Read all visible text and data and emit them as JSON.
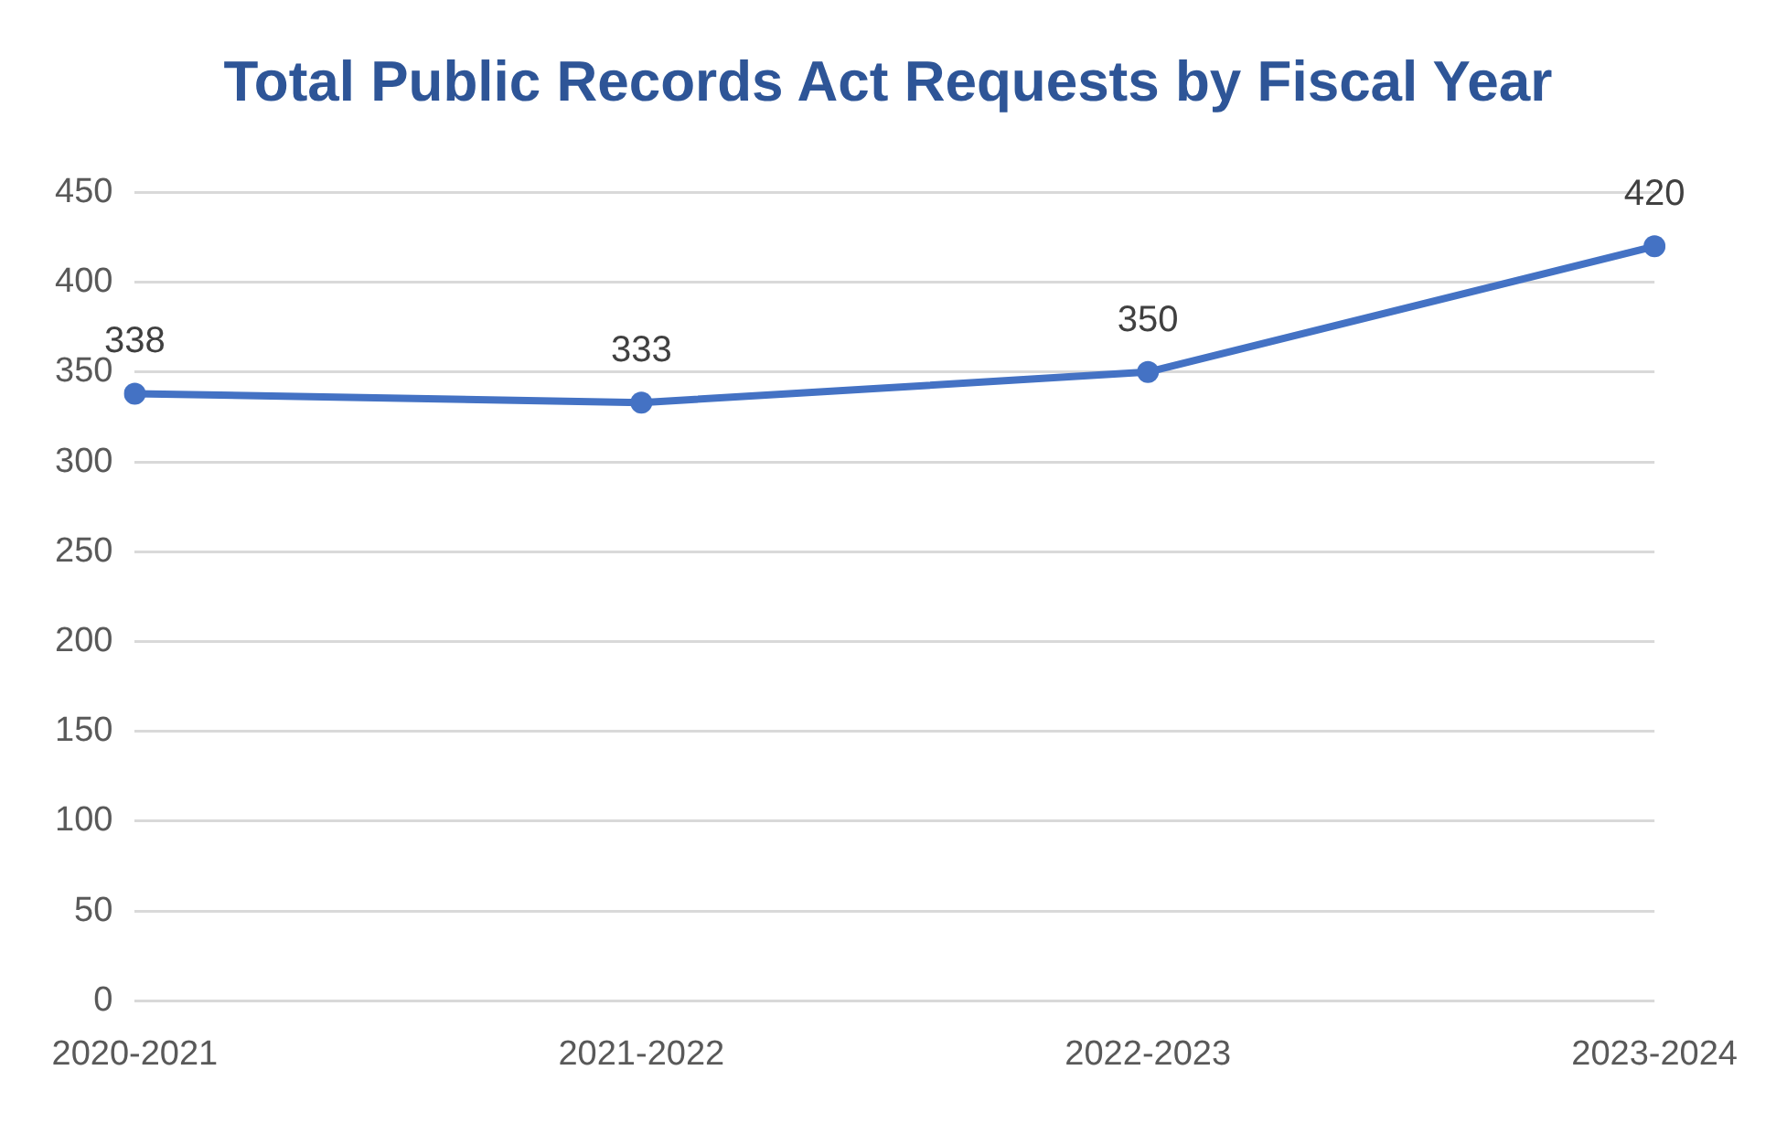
{
  "chart_data": {
    "type": "line",
    "title": "Total Public Records Act Requests by Fiscal Year",
    "categories": [
      "2020-2021",
      "2021-2022",
      "2022-2023",
      "2023-2024"
    ],
    "series": [
      {
        "color": "#4472c4",
        "values": [
          338,
          333,
          350,
          420
        ]
      }
    ],
    "ylim": [
      0,
      450
    ],
    "yticks": [
      0,
      50,
      100,
      150,
      200,
      250,
      300,
      350,
      400,
      450
    ],
    "grid": "y",
    "legend": false,
    "marker": "circle",
    "line_style": "solid",
    "data_labels": true
  }
}
